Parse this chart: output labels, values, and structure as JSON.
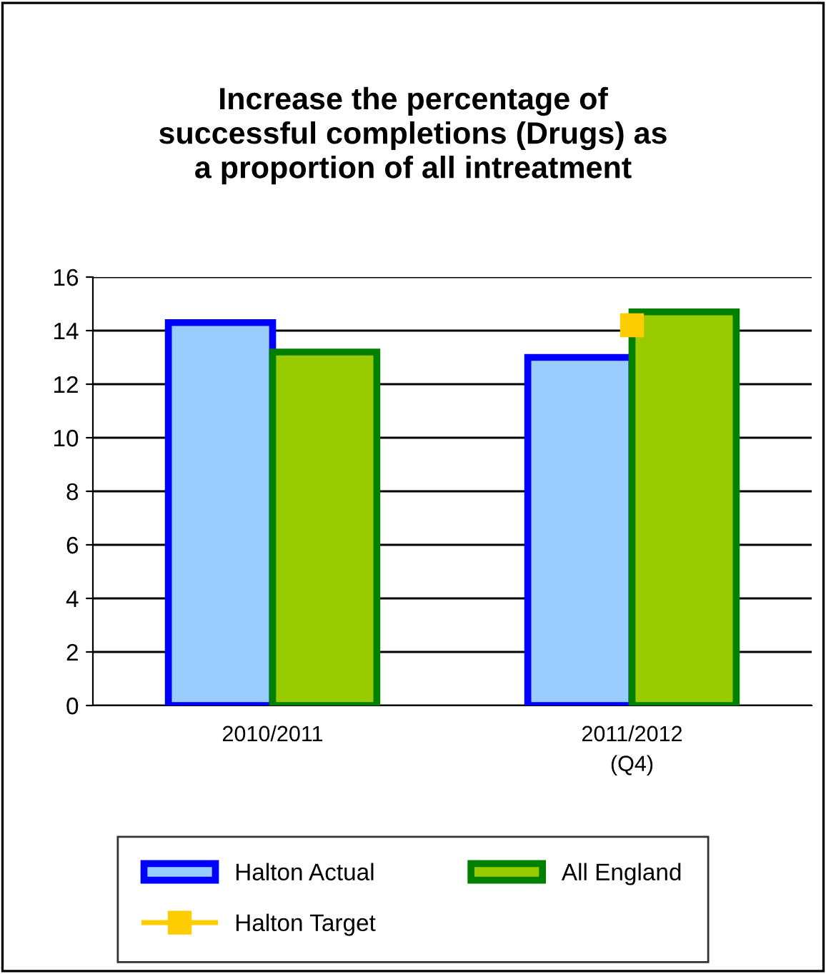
{
  "chart_data": {
    "type": "bar",
    "title": "Increase the percentage of\nsuccessful completions (Drugs) as\na proportion of all intreatment",
    "categories": [
      "2010/2011",
      "2011/2012\n(Q4)"
    ],
    "series": [
      {
        "name": "Halton Actual",
        "color": "#99ccff",
        "values": [
          14.3,
          13.0
        ]
      },
      {
        "name": "All England",
        "color": "#99cc00",
        "values": [
          13.2,
          14.7
        ]
      },
      {
        "name": "Halton Target",
        "type": "line",
        "color": "#ffcc00",
        "marker": "square",
        "values": [
          null,
          14.2
        ]
      }
    ],
    "ylim": [
      0,
      16
    ],
    "yticks": [
      0,
      2,
      4,
      6,
      8,
      10,
      12,
      14,
      16
    ],
    "grid": "y",
    "legend": "bottom"
  }
}
